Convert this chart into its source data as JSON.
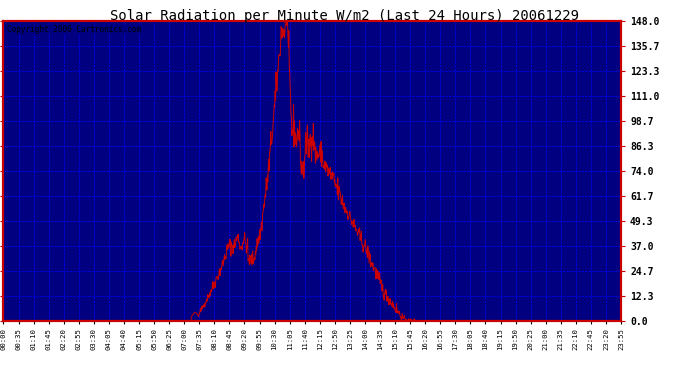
{
  "title": "Solar Radiation per Minute W/m2 (Last 24 Hours) 20061229",
  "copyright_text": "Copyright 2006 Cartronics.com",
  "y_ticks": [
    0.0,
    12.3,
    24.7,
    37.0,
    49.3,
    61.7,
    74.0,
    86.3,
    98.7,
    111.0,
    123.3,
    135.7,
    148.0
  ],
  "ylim": [
    0.0,
    148.0
  ],
  "plot_bg_color": "#000080",
  "outer_bg_color": "#ffffff",
  "line_color": "#cc0000",
  "grid_color": "#0000ff",
  "title_color": "#000000",
  "border_color": "#cc0000",
  "ytick_color": "#000000",
  "x_labels": [
    "00:00",
    "00:35",
    "01:10",
    "01:45",
    "02:20",
    "02:55",
    "03:30",
    "04:05",
    "04:40",
    "05:15",
    "05:50",
    "06:25",
    "07:00",
    "07:35",
    "08:10",
    "08:45",
    "09:20",
    "09:55",
    "10:30",
    "11:05",
    "11:40",
    "12:15",
    "12:50",
    "13:25",
    "14:00",
    "14:35",
    "15:10",
    "15:45",
    "16:20",
    "16:55",
    "17:30",
    "18:05",
    "18:40",
    "19:15",
    "19:50",
    "20:25",
    "21:00",
    "21:35",
    "22:10",
    "22:45",
    "23:20",
    "23:55"
  ],
  "figsize": [
    6.9,
    3.75
  ],
  "dpi": 100
}
